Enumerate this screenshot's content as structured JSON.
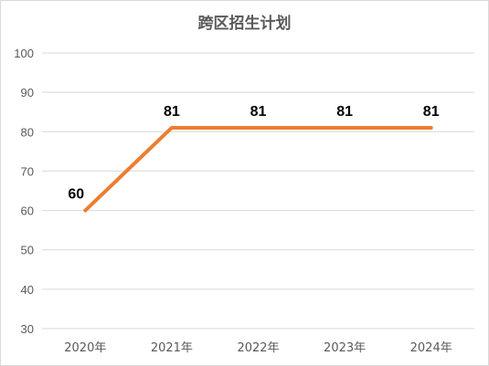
{
  "chart_data": {
    "type": "line",
    "title": "跨区招生计划",
    "categories": [
      "2020年",
      "2021年",
      "2022年",
      "2023年",
      "2024年"
    ],
    "series": [
      {
        "values": [
          60,
          81,
          81,
          81,
          81
        ],
        "data_labels": [
          "60",
          "81",
          "81",
          "81",
          "81"
        ]
      }
    ],
    "y_ticks": [
      "30",
      "40",
      "50",
      "60",
      "70",
      "80",
      "90",
      "100"
    ],
    "ylim": [
      30,
      100
    ],
    "grid": true,
    "legend": "none",
    "xlabel": "",
    "ylabel": ""
  },
  "colors": {
    "line": "#ED7D31",
    "grid": "#D9D9D9",
    "axis_text": "#595959"
  }
}
